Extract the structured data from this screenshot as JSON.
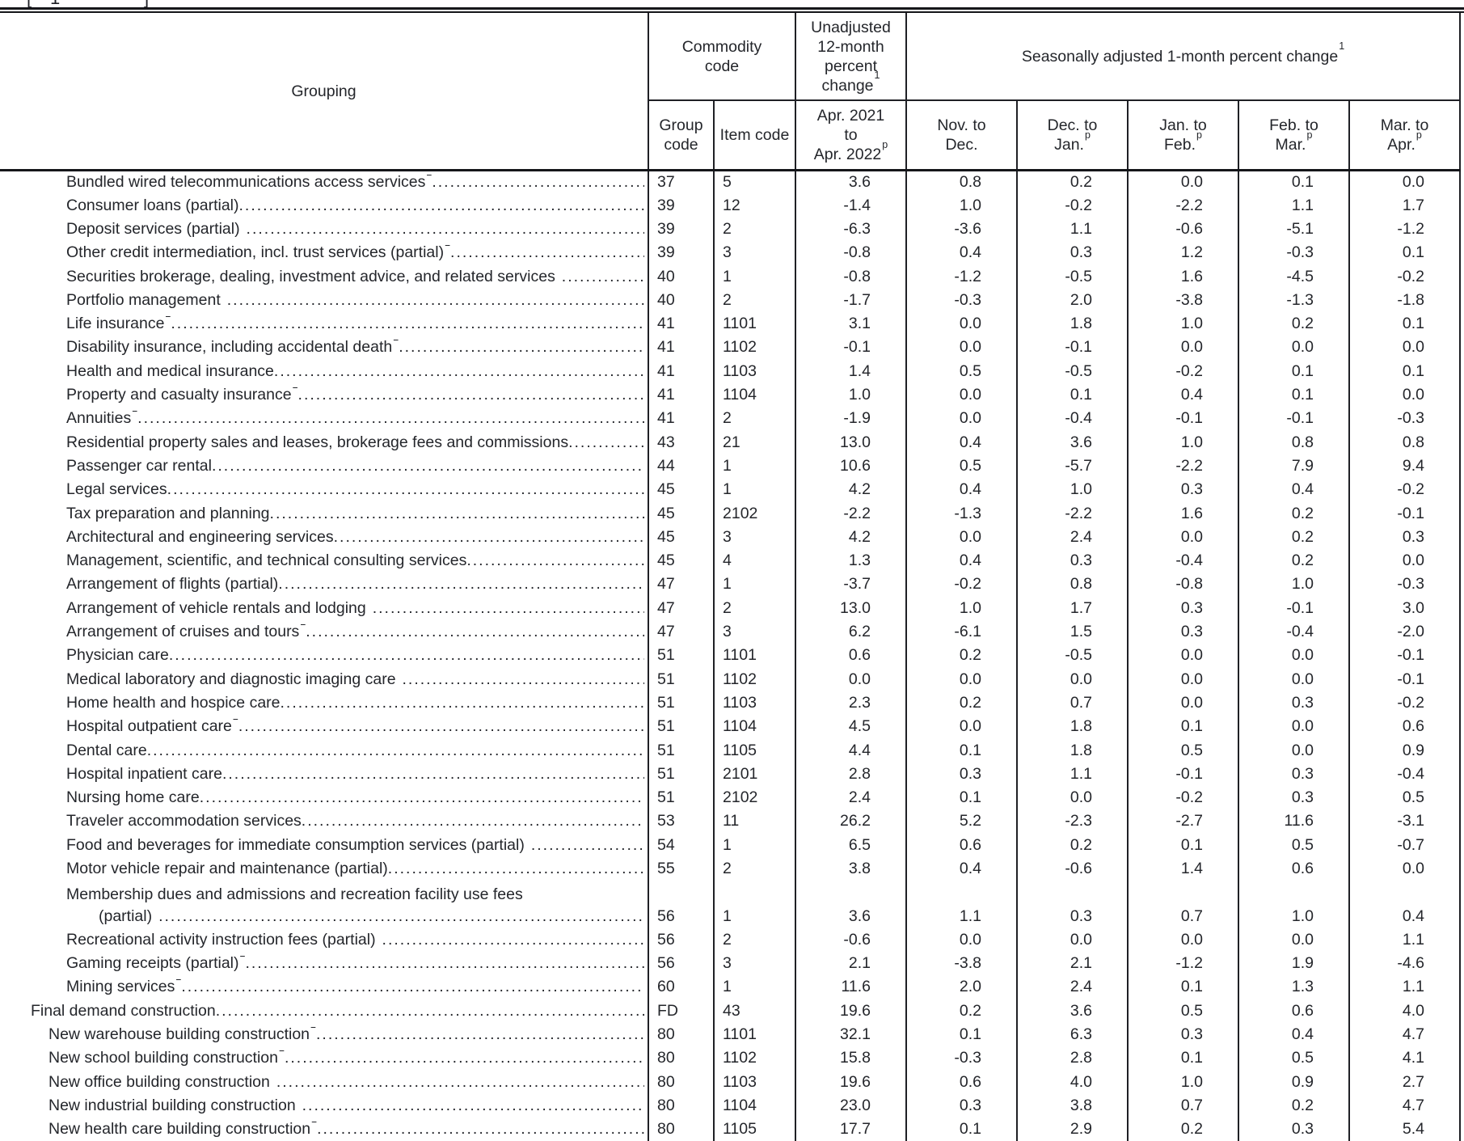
{
  "cropped_caption": {
    "fragments": [
      "[",
      "1",
      "]"
    ]
  },
  "table": {
    "headers": {
      "grouping": "Grouping",
      "commodity_code": "Commodity code",
      "unadjusted": "Unadjusted 12-month percent change",
      "unadjusted_sup": "1",
      "seasonally_adjusted": "Seasonally adjusted 1-month percent change",
      "seasonally_adjusted_sup": "1",
      "group_code": "Group code",
      "item_code": "Item code",
      "unadjusted_period": {
        "line1": "Apr. 2021",
        "line2": "to",
        "line3": "Apr. 2022",
        "line3_sup": "p"
      },
      "sa_periods": [
        {
          "line1": "Nov. to",
          "line2": "Dec.",
          "sup": ""
        },
        {
          "line1": "Dec. to",
          "line2": "Jan.",
          "sup": "p"
        },
        {
          "line1": "Jan. to",
          "line2": "Feb.",
          "sup": "p"
        },
        {
          "line1": "Feb. to",
          "line2": "Mar.",
          "sup": "p"
        },
        {
          "line1": "Mar. to",
          "line2": "Apr.",
          "sup": "p"
        }
      ]
    },
    "rows": [
      {
        "grouping": "Bundled wired telecommunications access services",
        "sup": "2",
        "indent": 3,
        "group_code": "37",
        "item_code": "5",
        "values": [
          "3.6",
          "0.8",
          "0.2",
          "0.0",
          "0.1",
          "0.0"
        ]
      },
      {
        "grouping": "Consumer loans (partial)",
        "sup": "",
        "indent": 3,
        "group_code": "39",
        "item_code": "12",
        "values": [
          "-1.4",
          "1.0",
          "-0.2",
          "-2.2",
          "1.1",
          "1.7"
        ]
      },
      {
        "grouping": "Deposit services (partial)",
        "sup": "2",
        "indent": 3,
        "group_code": "39",
        "item_code": "2",
        "values": [
          "-6.3",
          "-3.6",
          "1.1",
          "-0.6",
          "-5.1",
          "-1.2"
        ]
      },
      {
        "grouping": "Other credit intermediation, incl. trust services (partial)",
        "sup": "2",
        "indent": 3,
        "group_code": "39",
        "item_code": "3",
        "values": [
          "-0.8",
          "0.4",
          "0.3",
          "1.2",
          "-0.3",
          "0.1"
        ]
      },
      {
        "grouping": "Securities brokerage, dealing, investment advice, and related services",
        "sup": "2",
        "indent": 3,
        "group_code": "40",
        "item_code": "1",
        "values": [
          "-0.8",
          "-1.2",
          "-0.5",
          "1.6",
          "-4.5",
          "-0.2"
        ]
      },
      {
        "grouping": "Portfolio management",
        "sup": "2",
        "indent": 3,
        "group_code": "40",
        "item_code": "2",
        "values": [
          "-1.7",
          "-0.3",
          "2.0",
          "-3.8",
          "-1.3",
          "-1.8"
        ]
      },
      {
        "grouping": "Life insurance",
        "sup": "2",
        "indent": 3,
        "group_code": "41",
        "item_code": "1101",
        "values": [
          "3.1",
          "0.0",
          "1.8",
          "1.0",
          "0.2",
          "0.1"
        ]
      },
      {
        "grouping": "Disability insurance, including accidental death",
        "sup": "2",
        "indent": 3,
        "group_code": "41",
        "item_code": "1102",
        "values": [
          "-0.1",
          "0.0",
          "-0.1",
          "0.0",
          "0.0",
          "0.0"
        ]
      },
      {
        "grouping": "Health and medical insurance",
        "sup": "",
        "indent": 3,
        "group_code": "41",
        "item_code": "1103",
        "values": [
          "1.4",
          "0.5",
          "-0.5",
          "-0.2",
          "0.1",
          "0.1"
        ]
      },
      {
        "grouping": "Property and casualty insurance",
        "sup": "2",
        "indent": 3,
        "group_code": "41",
        "item_code": "1104",
        "values": [
          "1.0",
          "0.0",
          "0.1",
          "0.4",
          "0.1",
          "0.0"
        ]
      },
      {
        "grouping": "Annuities",
        "sup": "2",
        "indent": 3,
        "group_code": "41",
        "item_code": "2",
        "values": [
          "-1.9",
          "0.0",
          "-0.4",
          "-0.1",
          "-0.1",
          "-0.3"
        ]
      },
      {
        "grouping": "Residential property sales and leases, brokerage fees and commissions",
        "sup": "",
        "indent": 3,
        "group_code": "43",
        "item_code": "21",
        "values": [
          "13.0",
          "0.4",
          "3.6",
          "1.0",
          "0.8",
          "0.8"
        ]
      },
      {
        "grouping": "Passenger car rental",
        "sup": "",
        "indent": 3,
        "group_code": "44",
        "item_code": "1",
        "values": [
          "10.6",
          "0.5",
          "-5.7",
          "-2.2",
          "7.9",
          "9.4"
        ]
      },
      {
        "grouping": "Legal services",
        "sup": "",
        "indent": 3,
        "group_code": "45",
        "item_code": "1",
        "values": [
          "4.2",
          "0.4",
          "1.0",
          "0.3",
          "0.4",
          "-0.2"
        ]
      },
      {
        "grouping": "Tax preparation and planning",
        "sup": "",
        "indent": 3,
        "group_code": "45",
        "item_code": "2102",
        "values": [
          "-2.2",
          "-1.3",
          "-2.2",
          "1.6",
          "0.2",
          "-0.1"
        ]
      },
      {
        "grouping": "Architectural and engineering services",
        "sup": "",
        "indent": 3,
        "group_code": "45",
        "item_code": "3",
        "values": [
          "4.2",
          "0.0",
          "2.4",
          "0.0",
          "0.2",
          "0.3"
        ]
      },
      {
        "grouping": "Management, scientific, and technical consulting services",
        "sup": "",
        "indent": 3,
        "group_code": "45",
        "item_code": "4",
        "values": [
          "1.3",
          "0.4",
          "0.3",
          "-0.4",
          "0.2",
          "0.0"
        ]
      },
      {
        "grouping": "Arrangement of flights (partial)",
        "sup": "",
        "indent": 3,
        "group_code": "47",
        "item_code": "1",
        "values": [
          "-3.7",
          "-0.2",
          "0.8",
          "-0.8",
          "1.0",
          "-0.3"
        ]
      },
      {
        "grouping": "Arrangement of vehicle rentals and lodging",
        "sup": "2",
        "indent": 3,
        "group_code": "47",
        "item_code": "2",
        "values": [
          "13.0",
          "1.0",
          "1.7",
          "0.3",
          "-0.1",
          "3.0"
        ]
      },
      {
        "grouping": "Arrangement of cruises and tours",
        "sup": "2",
        "indent": 3,
        "group_code": "47",
        "item_code": "3",
        "values": [
          "6.2",
          "-6.1",
          "1.5",
          "0.3",
          "-0.4",
          "-2.0"
        ]
      },
      {
        "grouping": "Physician care",
        "sup": "",
        "indent": 3,
        "group_code": "51",
        "item_code": "1101",
        "values": [
          "0.6",
          "0.2",
          "-0.5",
          "0.0",
          "0.0",
          "-0.1"
        ]
      },
      {
        "grouping": "Medical laboratory and diagnostic imaging care",
        "sup": "2",
        "indent": 3,
        "group_code": "51",
        "item_code": "1102",
        "values": [
          "0.0",
          "0.0",
          "0.0",
          "0.0",
          "0.0",
          "-0.1"
        ]
      },
      {
        "grouping": "Home health and hospice care",
        "sup": "",
        "indent": 3,
        "group_code": "51",
        "item_code": "1103",
        "values": [
          "2.3",
          "0.2",
          "0.7",
          "0.0",
          "0.3",
          "-0.2"
        ]
      },
      {
        "grouping": "Hospital outpatient care",
        "sup": "2",
        "indent": 3,
        "group_code": "51",
        "item_code": "1104",
        "values": [
          "4.5",
          "0.0",
          "1.8",
          "0.1",
          "0.0",
          "0.6"
        ]
      },
      {
        "grouping": "Dental care",
        "sup": "",
        "indent": 3,
        "group_code": "51",
        "item_code": "1105",
        "values": [
          "4.4",
          "0.1",
          "1.8",
          "0.5",
          "0.0",
          "0.9"
        ]
      },
      {
        "grouping": "Hospital inpatient care",
        "sup": "",
        "indent": 3,
        "group_code": "51",
        "item_code": "2101",
        "values": [
          "2.8",
          "0.3",
          "1.1",
          "-0.1",
          "0.3",
          "-0.4"
        ]
      },
      {
        "grouping": "Nursing home care",
        "sup": "",
        "indent": 3,
        "group_code": "51",
        "item_code": "2102",
        "values": [
          "2.4",
          "0.1",
          "0.0",
          "-0.2",
          "0.3",
          "0.5"
        ]
      },
      {
        "grouping": "Traveler accommodation services",
        "sup": "",
        "indent": 3,
        "group_code": "53",
        "item_code": "11",
        "values": [
          "26.2",
          "5.2",
          "-2.3",
          "-2.7",
          "11.6",
          "-3.1"
        ]
      },
      {
        "grouping": "Food and beverages for immediate consumption services (partial)",
        "sup": "2",
        "indent": 3,
        "group_code": "54",
        "item_code": "1",
        "values": [
          "6.5",
          "0.6",
          "0.2",
          "0.1",
          "0.5",
          "-0.7"
        ]
      },
      {
        "grouping": "Motor vehicle repair and maintenance (partial)",
        "sup": "",
        "indent": 3,
        "group_code": "55",
        "item_code": "2",
        "values": [
          "3.8",
          "0.4",
          "-0.6",
          "1.4",
          "0.6",
          "0.0"
        ]
      },
      {
        "grouping": "Membership dues and admissions and recreation facility use fees",
        "grouping_line2": "(partial)",
        "sup": "2",
        "indent": 3,
        "group_code": "56",
        "item_code": "1",
        "values": [
          "3.6",
          "1.1",
          "0.3",
          "0.7",
          "1.0",
          "0.4"
        ]
      },
      {
        "grouping": "Recreational activity instruction fees (partial)",
        "sup": "2",
        "indent": 3,
        "group_code": "56",
        "item_code": "2",
        "values": [
          "-0.6",
          "0.0",
          "0.0",
          "0.0",
          "0.0",
          "1.1"
        ]
      },
      {
        "grouping": "Gaming receipts (partial)",
        "sup": "2",
        "indent": 3,
        "group_code": "56",
        "item_code": "3",
        "values": [
          "2.1",
          "-3.8",
          "2.1",
          "-1.2",
          "1.9",
          "-4.6"
        ]
      },
      {
        "grouping": "Mining services",
        "sup": "2",
        "indent": 3,
        "group_code": "60",
        "item_code": "1",
        "values": [
          "11.6",
          "2.0",
          "2.4",
          "0.1",
          "1.3",
          "1.1"
        ]
      },
      {
        "grouping": "Final demand construction",
        "sup": "",
        "indent": 1,
        "group_code": "FD",
        "item_code": "43",
        "values": [
          "19.6",
          "0.2",
          "3.6",
          "0.5",
          "0.6",
          "4.0"
        ]
      },
      {
        "grouping": "New warehouse building construction",
        "sup": "2",
        "indent": 2,
        "group_code": "80",
        "item_code": "1101",
        "values": [
          "32.1",
          "0.1",
          "6.3",
          "0.3",
          "0.4",
          "4.7"
        ]
      },
      {
        "grouping": "New school building construction",
        "sup": "2",
        "indent": 2,
        "group_code": "80",
        "item_code": "1102",
        "values": [
          "15.8",
          "-0.3",
          "2.8",
          "0.1",
          "0.5",
          "4.1"
        ]
      },
      {
        "grouping": "New office building construction",
        "sup": "2",
        "indent": 2,
        "group_code": "80",
        "item_code": "1103",
        "values": [
          "19.6",
          "0.6",
          "4.0",
          "1.0",
          "0.9",
          "2.7"
        ]
      },
      {
        "grouping": "New industrial building construction",
        "sup": "2",
        "indent": 2,
        "group_code": "80",
        "item_code": "1104",
        "values": [
          "23.0",
          "0.3",
          "3.8",
          "0.7",
          "0.2",
          "4.7"
        ]
      },
      {
        "grouping": "New health care building construction",
        "sup": "2",
        "indent": 2,
        "group_code": "80",
        "item_code": "1105",
        "values": [
          "17.7",
          "0.1",
          "2.9",
          "0.2",
          "0.3",
          "5.4"
        ]
      }
    ]
  }
}
